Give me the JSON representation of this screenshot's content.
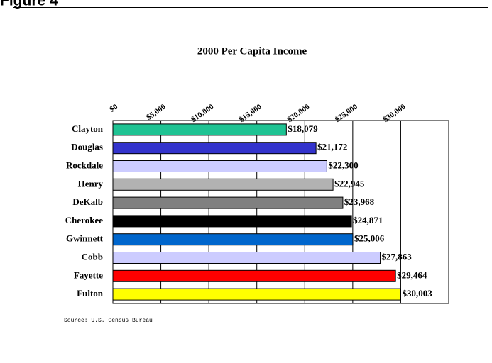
{
  "chart_data": {
    "type": "hbar",
    "figure_label": "Figure 4",
    "title": "2000 Per Capita Income",
    "source": "Source: U.S. Census Bureau",
    "categories": [
      "Clayton",
      "Douglas",
      "Rockdale",
      "Henry",
      "DeKalb",
      "Cherokee",
      "Gwinnett",
      "Cobb",
      "Fayette",
      "Fulton"
    ],
    "values": [
      18079,
      21172,
      22300,
      22945,
      23968,
      24871,
      25006,
      27863,
      29464,
      30003
    ],
    "value_labels": [
      "$18,079",
      "$21,172",
      "$22,300",
      "$22,945",
      "$23,968",
      "$24,871",
      "$25,006",
      "$27,863",
      "$29,464",
      "$30,003"
    ],
    "colors": [
      "#1fc393",
      "#3333cc",
      "#ccccff",
      "#b2b2b2",
      "#808080",
      "#000000",
      "#0066cc",
      "#ccccff",
      "#ff0000",
      "#ffff00"
    ],
    "xlim": [
      0,
      35000
    ],
    "xticks": [
      {
        "value": 0,
        "label": "$0"
      },
      {
        "value": 5000,
        "label": "$5,000"
      },
      {
        "value": 10000,
        "label": "$10,000"
      },
      {
        "value": 15000,
        "label": "$15,000"
      },
      {
        "value": 20000,
        "label": "$20,000"
      },
      {
        "value": 25000,
        "label": "$25,000"
      },
      {
        "value": 30000,
        "label": "$30,000"
      }
    ],
    "grid": true
  }
}
